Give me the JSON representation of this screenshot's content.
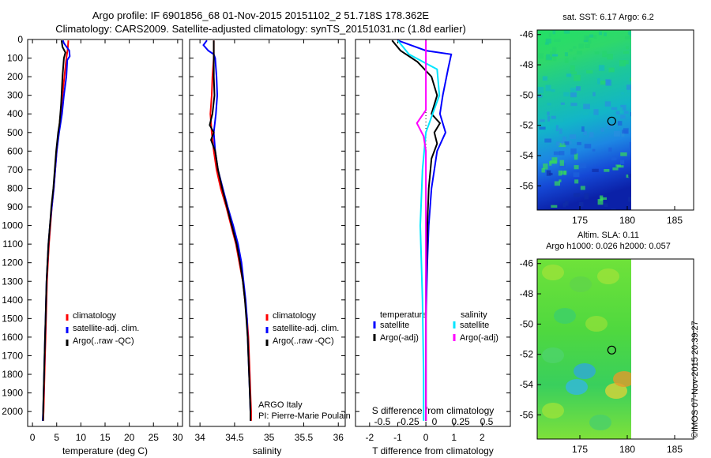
{
  "titles": {
    "line1": "Argo profile: IF 6901856_68 01-Nov-2015 20151102_2 51.718S 178.362E",
    "line2": "Climatology: CARS2009. Satellite-adjusted climatology: synTS_20151031.nc (1.8d earlier)"
  },
  "watermark": "©IMOS 07-Nov-2015 20:39:27",
  "colors": {
    "climatology": "#ff0000",
    "satellite": "#0000ff",
    "argo": "#000000",
    "salinity_sat": "#00e5ff",
    "salinity_argo": "#ff00ff"
  },
  "chart_data": [
    {
      "type": "line",
      "name": "temperature",
      "xlabel": "temperature (deg C)",
      "ylabel": "",
      "xlim": [
        -1,
        31
      ],
      "ylim": [
        2080,
        0
      ],
      "xticks": [
        0,
        5,
        10,
        15,
        20,
        25,
        30
      ],
      "yticks": [
        0,
        100,
        200,
        300,
        400,
        500,
        600,
        700,
        800,
        900,
        1000,
        1100,
        1200,
        1300,
        1400,
        1500,
        1600,
        1700,
        1800,
        1900,
        2000
      ],
      "legend": [
        "climatology",
        "satellite-adj. clim.",
        "Argo(..raw -QC)"
      ],
      "series": [
        {
          "name": "climatology",
          "color": "#ff0000",
          "points": [
            [
              7.4,
              5
            ],
            [
              7.3,
              50
            ],
            [
              7.0,
              100
            ],
            [
              6.6,
              200
            ],
            [
              6.2,
              300
            ],
            [
              5.8,
              400
            ],
            [
              5.4,
              500
            ],
            [
              5.0,
              600
            ],
            [
              4.7,
              700
            ],
            [
              4.4,
              800
            ],
            [
              4.0,
              900
            ],
            [
              3.7,
              1000
            ],
            [
              3.4,
              1100
            ],
            [
              3.2,
              1200
            ],
            [
              3.0,
              1300
            ],
            [
              2.9,
              1400
            ],
            [
              2.8,
              1500
            ],
            [
              2.7,
              1600
            ],
            [
              2.6,
              1700
            ],
            [
              2.5,
              1800
            ],
            [
              2.4,
              1900
            ],
            [
              2.3,
              2000
            ],
            [
              2.2,
              2050
            ]
          ]
        },
        {
          "name": "satellite-adj. clim.",
          "color": "#0000ff",
          "points": [
            [
              6.3,
              5
            ],
            [
              6.5,
              20
            ],
            [
              7.6,
              60
            ],
            [
              7.7,
              90
            ],
            [
              7.2,
              110
            ],
            [
              7.0,
              200
            ],
            [
              6.5,
              300
            ],
            [
              6.1,
              400
            ],
            [
              5.5,
              500
            ],
            [
              5.0,
              600
            ],
            [
              4.7,
              700
            ],
            [
              4.4,
              800
            ],
            [
              4.0,
              900
            ],
            [
              3.6,
              1000
            ],
            [
              3.3,
              1100
            ],
            [
              3.1,
              1200
            ],
            [
              2.9,
              1300
            ],
            [
              2.8,
              1400
            ],
            [
              2.7,
              1500
            ],
            [
              2.6,
              1600
            ],
            [
              2.5,
              1700
            ],
            [
              2.4,
              1800
            ],
            [
              2.3,
              1900
            ],
            [
              2.2,
              2000
            ],
            [
              2.1,
              2050
            ]
          ]
        },
        {
          "name": "Argo(..raw -QC)",
          "color": "#000000",
          "points": [
            [
              6.0,
              5
            ],
            [
              6.2,
              40
            ],
            [
              6.8,
              70
            ],
            [
              6.5,
              100
            ],
            [
              6.2,
              200
            ],
            [
              6.0,
              300
            ],
            [
              5.9,
              350
            ],
            [
              5.6,
              450
            ],
            [
              5.3,
              500
            ],
            [
              4.9,
              600
            ],
            [
              4.6,
              700
            ],
            [
              4.3,
              800
            ],
            [
              3.9,
              900
            ],
            [
              3.6,
              1000
            ],
            [
              3.3,
              1100
            ],
            [
              3.1,
              1200
            ],
            [
              2.9,
              1300
            ],
            [
              2.8,
              1400
            ],
            [
              2.7,
              1500
            ],
            [
              2.6,
              1600
            ],
            [
              2.5,
              1700
            ],
            [
              2.4,
              1800
            ],
            [
              2.3,
              1900
            ],
            [
              2.2,
              2000
            ],
            [
              2.2,
              2050
            ]
          ]
        }
      ]
    },
    {
      "type": "line",
      "name": "salinity",
      "xlabel": "salinity",
      "xlim": [
        33.85,
        36.1
      ],
      "ylim": [
        2080,
        0
      ],
      "xticks": [
        34,
        34.5,
        35,
        35.5,
        36
      ],
      "legend": [
        "climatology",
        "satellite-adj. clim.",
        "Argo(..raw -QC)"
      ],
      "annotation": [
        "ARGO Italy",
        "PI: Pierre-Marie Poulain"
      ],
      "series": [
        {
          "name": "climatology",
          "color": "#ff0000",
          "points": [
            [
              34.2,
              5
            ],
            [
              34.2,
              100
            ],
            [
              34.18,
              200
            ],
            [
              34.17,
              300
            ],
            [
              34.15,
              400
            ],
            [
              34.17,
              500
            ],
            [
              34.2,
              600
            ],
            [
              34.24,
              700
            ],
            [
              34.3,
              800
            ],
            [
              34.38,
              900
            ],
            [
              34.45,
              1000
            ],
            [
              34.52,
              1100
            ],
            [
              34.57,
              1200
            ],
            [
              34.62,
              1300
            ],
            [
              34.65,
              1400
            ],
            [
              34.68,
              1500
            ],
            [
              34.7,
              1600
            ],
            [
              34.71,
              1700
            ],
            [
              34.72,
              1800
            ],
            [
              34.73,
              1900
            ],
            [
              34.74,
              2000
            ],
            [
              34.74,
              2050
            ]
          ]
        },
        {
          "name": "satellite-adj. clim.",
          "color": "#0000ff",
          "points": [
            [
              34.1,
              5
            ],
            [
              34.05,
              30
            ],
            [
              34.12,
              60
            ],
            [
              34.2,
              80
            ],
            [
              34.22,
              100
            ],
            [
              34.24,
              200
            ],
            [
              34.25,
              300
            ],
            [
              34.23,
              400
            ],
            [
              34.2,
              500
            ],
            [
              34.22,
              600
            ],
            [
              34.26,
              700
            ],
            [
              34.33,
              800
            ],
            [
              34.4,
              900
            ],
            [
              34.48,
              1000
            ],
            [
              34.55,
              1100
            ],
            [
              34.6,
              1200
            ],
            [
              34.63,
              1300
            ],
            [
              34.66,
              1400
            ],
            [
              34.68,
              1500
            ],
            [
              34.69,
              1600
            ],
            [
              34.7,
              1700
            ],
            [
              34.71,
              1800
            ],
            [
              34.72,
              1900
            ],
            [
              34.73,
              2000
            ],
            [
              34.73,
              2050
            ]
          ]
        },
        {
          "name": "Argo(..raw -QC)",
          "color": "#000000",
          "points": [
            [
              34.2,
              5
            ],
            [
              34.2,
              100
            ],
            [
              34.2,
              200
            ],
            [
              34.21,
              300
            ],
            [
              34.18,
              400
            ],
            [
              34.14,
              460
            ],
            [
              34.2,
              500
            ],
            [
              34.16,
              540
            ],
            [
              34.22,
              600
            ],
            [
              34.26,
              700
            ],
            [
              34.32,
              800
            ],
            [
              34.39,
              900
            ],
            [
              34.46,
              1000
            ],
            [
              34.53,
              1100
            ],
            [
              34.58,
              1200
            ],
            [
              34.62,
              1300
            ],
            [
              34.65,
              1400
            ],
            [
              34.67,
              1500
            ],
            [
              34.69,
              1600
            ],
            [
              34.7,
              1700
            ],
            [
              34.71,
              1800
            ],
            [
              34.72,
              1900
            ],
            [
              34.73,
              2000
            ],
            [
              34.73,
              2050
            ]
          ]
        }
      ]
    },
    {
      "type": "line",
      "name": "difference",
      "xlabel": "T difference from climatology",
      "xlabel_top": "S difference from climatology",
      "xlim": [
        -2.5,
        3.0
      ],
      "ylim": [
        2080,
        0
      ],
      "xticks": [
        -2,
        -1,
        0,
        1,
        2
      ],
      "s_ticks": [
        "-0.5",
        "-0.25",
        "0",
        "0.25",
        "0.5"
      ],
      "legend_titles": [
        "temperature",
        "salinity"
      ],
      "legend": [
        "satellite",
        "Argo(-adj)",
        "satellite",
        "Argo(-adj)"
      ],
      "series": [
        {
          "name": "T satellite",
          "color": "#0000ff",
          "points": [
            [
              -1.0,
              5
            ],
            [
              0.0,
              60
            ],
            [
              0.9,
              80
            ],
            [
              0.8,
              150
            ],
            [
              0.6,
              300
            ],
            [
              0.5,
              400
            ],
            [
              0.7,
              500
            ],
            [
              0.4,
              600
            ],
            [
              0.3,
              700
            ],
            [
              0.2,
              800
            ],
            [
              0.1,
              1000
            ],
            [
              0.05,
              1200
            ],
            [
              0.0,
              1500
            ],
            [
              0.0,
              1800
            ],
            [
              0.0,
              2050
            ]
          ]
        },
        {
          "name": "T Argo(-adj)",
          "color": "#000000",
          "points": [
            [
              -1.2,
              5
            ],
            [
              -0.9,
              60
            ],
            [
              -0.3,
              120
            ],
            [
              0.2,
              200
            ],
            [
              0.4,
              300
            ],
            [
              0.2,
              400
            ],
            [
              0.5,
              450
            ],
            [
              0.3,
              500
            ],
            [
              0.4,
              560
            ],
            [
              0.2,
              640
            ],
            [
              0.1,
              800
            ],
            [
              0.05,
              1000
            ],
            [
              0.0,
              1300
            ],
            [
              0.0,
              1600
            ],
            [
              0.0,
              2050
            ]
          ]
        },
        {
          "name": "S satellite",
          "color": "#00e5ff",
          "points": [
            [
              -0.25,
              5
            ],
            [
              -0.15,
              80
            ],
            [
              0.1,
              160
            ],
            [
              0.12,
              300
            ],
            [
              0.06,
              400
            ],
            [
              0.0,
              500
            ],
            [
              -0.03,
              700
            ],
            [
              -0.05,
              1000
            ],
            [
              -0.03,
              1400
            ],
            [
              -0.02,
              1800
            ],
            [
              -0.02,
              2050
            ]
          ]
        },
        {
          "name": "S Argo(-adj)",
          "color": "#ff00ff",
          "points": [
            [
              0.0,
              5
            ],
            [
              0.0,
              200
            ],
            [
              0.0,
              380
            ],
            [
              -0.08,
              450
            ],
            [
              -0.02,
              520
            ],
            [
              0.0,
              600
            ],
            [
              0.0,
              800
            ],
            [
              0.0,
              1200
            ],
            [
              0.0,
              2050
            ]
          ]
        }
      ]
    },
    {
      "type": "heatmap",
      "name": "sst-map",
      "title": "sat. SST: 6.17  Argo: 6.2",
      "xticks": [
        175,
        180,
        185
      ],
      "yticks": [
        -46,
        -48,
        -50,
        -52,
        -54,
        -56
      ],
      "marker": [
        178.362,
        -51.718
      ]
    },
    {
      "type": "heatmap",
      "name": "sla-map",
      "title_lines": [
        "Altim. SLA: 0.11",
        "Argo h1000: 0.026 h2000: 0.057"
      ],
      "xticks": [
        175,
        180,
        185
      ],
      "yticks": [
        -46,
        -48,
        -50,
        -52,
        -54,
        -56
      ],
      "marker": [
        178.362,
        -51.718
      ]
    }
  ]
}
